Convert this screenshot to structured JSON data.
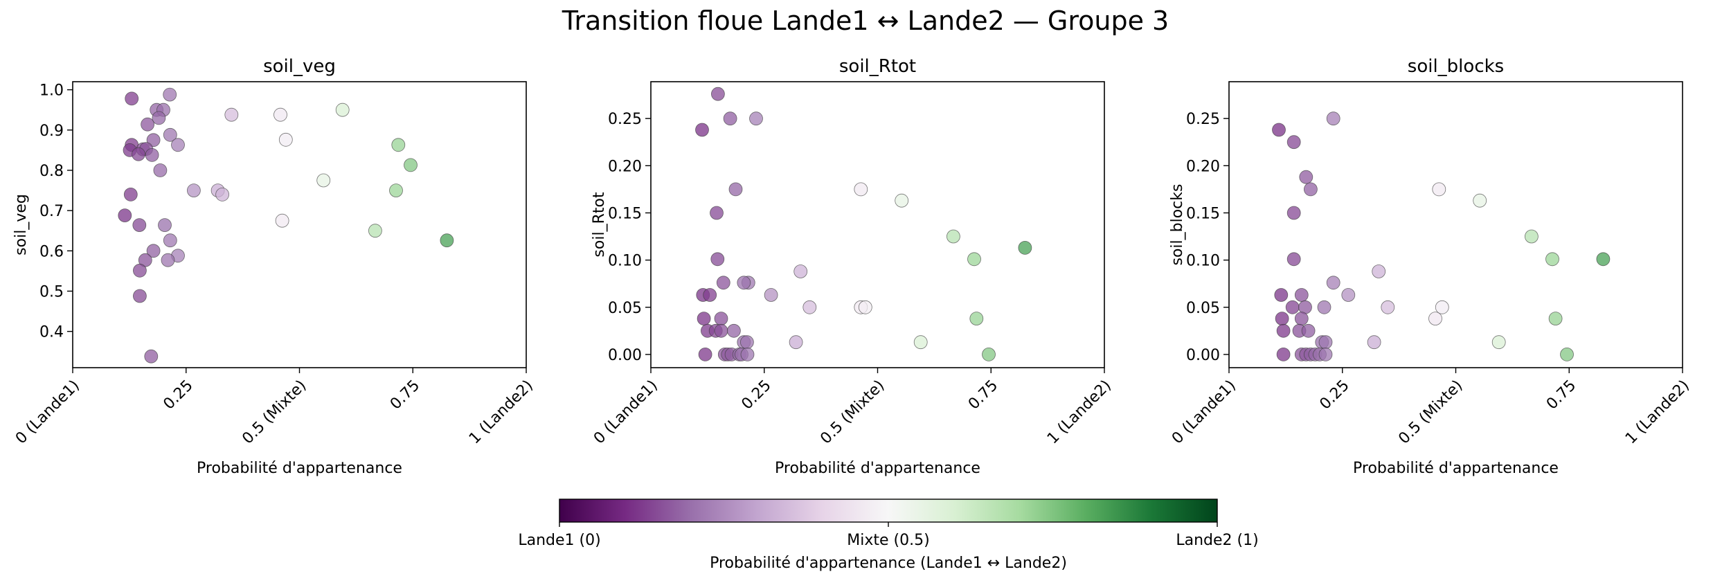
{
  "figure": {
    "title": "Transition floue Lande1 ↔ Lande2 — Groupe 3"
  },
  "colorbar": {
    "label": "Probabilité d'appartenance (Lande1 ↔ Lande2)",
    "ticks": [
      {
        "value": 0,
        "label": "Lande1 (0)"
      },
      {
        "value": 0.5,
        "label": "Mixte (0.5)"
      },
      {
        "value": 1,
        "label": "Lande2 (1)"
      }
    ],
    "colors": [
      "#40004b",
      "#762a83",
      "#9970ab",
      "#c2a5cf",
      "#e7d4e8",
      "#f7f7f7",
      "#d9f0d3",
      "#a6dba0",
      "#5aae61",
      "#1b7837",
      "#00441b"
    ]
  },
  "chart_data": [
    {
      "type": "scatter",
      "title": "soil_veg",
      "xlabel": "Probabilité d'appartenance",
      "ylabel": "soil_veg",
      "xlim": [
        0,
        1
      ],
      "ylim": [
        0.31,
        1.02
      ],
      "xticks": [
        {
          "value": 0,
          "label": "0 (Lande1)"
        },
        {
          "value": 0.25,
          "label": "0.25"
        },
        {
          "value": 0.5,
          "label": "0.5 (Mixte)"
        },
        {
          "value": 0.75,
          "label": "0.75"
        },
        {
          "value": 1,
          "label": "1 (Lande2)"
        }
      ],
      "yticks": [
        {
          "value": 0.4,
          "label": "0.4"
        },
        {
          "value": 0.5,
          "label": "0.5"
        },
        {
          "value": 0.6,
          "label": "0.6"
        },
        {
          "value": 0.7,
          "label": "0.7"
        },
        {
          "value": 0.8,
          "label": "0.8"
        },
        {
          "value": 0.9,
          "label": "0.9"
        },
        {
          "value": 1.0,
          "label": "1.0"
        }
      ],
      "points": [
        [
          0.13,
          0.978
        ],
        [
          0.214,
          0.988
        ],
        [
          0.185,
          0.95
        ],
        [
          0.2,
          0.95
        ],
        [
          0.19,
          0.93
        ],
        [
          0.165,
          0.914
        ],
        [
          0.215,
          0.888
        ],
        [
          0.178,
          0.875
        ],
        [
          0.232,
          0.863
        ],
        [
          0.13,
          0.863
        ],
        [
          0.126,
          0.85
        ],
        [
          0.155,
          0.852
        ],
        [
          0.162,
          0.853
        ],
        [
          0.145,
          0.84
        ],
        [
          0.175,
          0.838
        ],
        [
          0.193,
          0.8
        ],
        [
          0.267,
          0.75
        ],
        [
          0.128,
          0.74
        ],
        [
          0.115,
          0.688
        ],
        [
          0.147,
          0.664
        ],
        [
          0.203,
          0.664
        ],
        [
          0.215,
          0.626
        ],
        [
          0.178,
          0.6
        ],
        [
          0.232,
          0.588
        ],
        [
          0.21,
          0.577
        ],
        [
          0.16,
          0.577
        ],
        [
          0.148,
          0.551
        ],
        [
          0.148,
          0.488
        ],
        [
          0.173,
          0.338
        ],
        [
          0.35,
          0.938
        ],
        [
          0.32,
          0.75
        ],
        [
          0.33,
          0.74
        ],
        [
          0.458,
          0.938
        ],
        [
          0.47,
          0.876
        ],
        [
          0.462,
          0.675
        ],
        [
          0.553,
          0.775
        ],
        [
          0.595,
          0.95
        ],
        [
          0.667,
          0.65
        ],
        [
          0.713,
          0.75
        ],
        [
          0.718,
          0.863
        ],
        [
          0.745,
          0.813
        ],
        [
          0.825,
          0.626
        ]
      ]
    },
    {
      "type": "scatter",
      "title": "soil_Rtot",
      "xlabel": "Probabilité d'appartenance",
      "ylabel": "soil_Rtot",
      "xlim": [
        0,
        1
      ],
      "ylim": [
        -0.014,
        0.289
      ],
      "xticks": [
        {
          "value": 0,
          "label": "0 (Lande1)"
        },
        {
          "value": 0.25,
          "label": "0.25"
        },
        {
          "value": 0.5,
          "label": "0.5 (Mixte)"
        },
        {
          "value": 0.75,
          "label": "0.75"
        },
        {
          "value": 1,
          "label": "1 (Lande2)"
        }
      ],
      "yticks": [
        {
          "value": 0.0,
          "label": "0.00"
        },
        {
          "value": 0.05,
          "label": "0.05"
        },
        {
          "value": 0.1,
          "label": "0.10"
        },
        {
          "value": 0.15,
          "label": "0.15"
        },
        {
          "value": 0.2,
          "label": "0.20"
        },
        {
          "value": 0.25,
          "label": "0.25"
        }
      ],
      "points": [
        [
          0.148,
          0.276
        ],
        [
          0.175,
          0.25
        ],
        [
          0.232,
          0.25
        ],
        [
          0.113,
          0.238
        ],
        [
          0.187,
          0.175
        ],
        [
          0.145,
          0.15
        ],
        [
          0.147,
          0.101
        ],
        [
          0.16,
          0.076
        ],
        [
          0.215,
          0.076
        ],
        [
          0.205,
          0.076
        ],
        [
          0.115,
          0.063
        ],
        [
          0.13,
          0.063
        ],
        [
          0.265,
          0.063
        ],
        [
          0.117,
          0.038
        ],
        [
          0.155,
          0.038
        ],
        [
          0.125,
          0.025
        ],
        [
          0.143,
          0.025
        ],
        [
          0.155,
          0.025
        ],
        [
          0.183,
          0.025
        ],
        [
          0.205,
          0.013
        ],
        [
          0.212,
          0.013
        ],
        [
          0.12,
          0.0
        ],
        [
          0.163,
          0.0
        ],
        [
          0.17,
          0.0
        ],
        [
          0.178,
          0.0
        ],
        [
          0.195,
          0.0
        ],
        [
          0.2,
          0.0
        ],
        [
          0.213,
          0.0
        ],
        [
          0.33,
          0.088
        ],
        [
          0.35,
          0.05
        ],
        [
          0.32,
          0.013
        ],
        [
          0.463,
          0.175
        ],
        [
          0.463,
          0.05
        ],
        [
          0.473,
          0.05
        ],
        [
          0.553,
          0.163
        ],
        [
          0.595,
          0.013
        ],
        [
          0.667,
          0.125
        ],
        [
          0.713,
          0.101
        ],
        [
          0.718,
          0.038
        ],
        [
          0.745,
          0.0
        ],
        [
          0.825,
          0.113
        ]
      ]
    },
    {
      "type": "scatter",
      "title": "soil_blocks",
      "xlabel": "Probabilité d'appartenance",
      "ylabel": "soil_blocks",
      "xlim": [
        0,
        1
      ],
      "ylim": [
        -0.014,
        0.289
      ],
      "xticks": [
        {
          "value": 0,
          "label": "0 (Lande1)"
        },
        {
          "value": 0.25,
          "label": "0.25"
        },
        {
          "value": 0.5,
          "label": "0.5 (Mixte)"
        },
        {
          "value": 0.75,
          "label": "0.75"
        },
        {
          "value": 1,
          "label": "1 (Lande2)"
        }
      ],
      "yticks": [
        {
          "value": 0.0,
          "label": "0.00"
        },
        {
          "value": 0.05,
          "label": "0.05"
        },
        {
          "value": 0.1,
          "label": "0.10"
        },
        {
          "value": 0.15,
          "label": "0.15"
        },
        {
          "value": 0.2,
          "label": "0.20"
        },
        {
          "value": 0.25,
          "label": "0.25"
        }
      ],
      "points": [
        [
          0.23,
          0.25
        ],
        [
          0.11,
          0.238
        ],
        [
          0.143,
          0.225
        ],
        [
          0.17,
          0.188
        ],
        [
          0.18,
          0.175
        ],
        [
          0.143,
          0.15
        ],
        [
          0.143,
          0.101
        ],
        [
          0.23,
          0.076
        ],
        [
          0.16,
          0.063
        ],
        [
          0.115,
          0.063
        ],
        [
          0.21,
          0.05
        ],
        [
          0.14,
          0.05
        ],
        [
          0.168,
          0.05
        ],
        [
          0.117,
          0.038
        ],
        [
          0.16,
          0.038
        ],
        [
          0.263,
          0.063
        ],
        [
          0.12,
          0.025
        ],
        [
          0.155,
          0.025
        ],
        [
          0.175,
          0.025
        ],
        [
          0.205,
          0.013
        ],
        [
          0.213,
          0.013
        ],
        [
          0.12,
          0.0
        ],
        [
          0.16,
          0.0
        ],
        [
          0.17,
          0.0
        ],
        [
          0.18,
          0.0
        ],
        [
          0.19,
          0.0
        ],
        [
          0.2,
          0.0
        ],
        [
          0.213,
          0.0
        ],
        [
          0.33,
          0.088
        ],
        [
          0.35,
          0.05
        ],
        [
          0.32,
          0.013
        ],
        [
          0.463,
          0.175
        ],
        [
          0.455,
          0.038
        ],
        [
          0.47,
          0.05
        ],
        [
          0.553,
          0.163
        ],
        [
          0.595,
          0.013
        ],
        [
          0.667,
          0.125
        ],
        [
          0.713,
          0.101
        ],
        [
          0.72,
          0.038
        ],
        [
          0.745,
          0.0
        ],
        [
          0.825,
          0.101
        ]
      ]
    }
  ]
}
